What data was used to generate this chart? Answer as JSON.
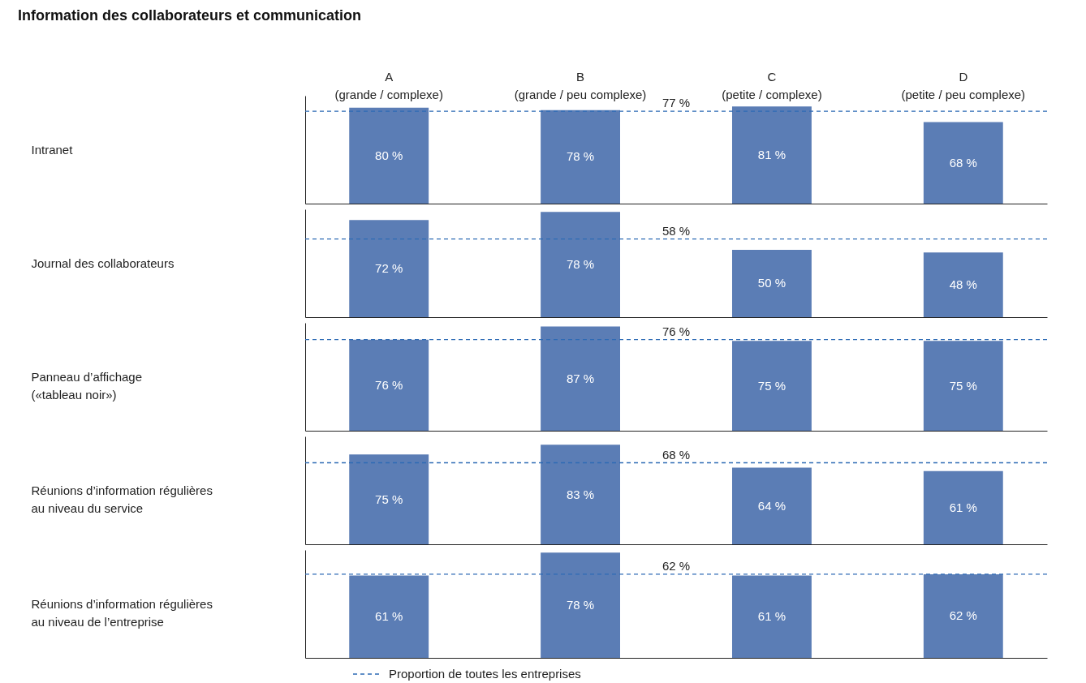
{
  "chart_data": [
    {
      "type": "bar",
      "title": "Information des collaborateurs et communication",
      "ylabel": "Intranet",
      "categories": [
        "A\n(grande / complexe)",
        "B\n(grande / peu complexe)",
        "C\n(petite / complexe)",
        "D\n(petite / peu complexe)"
      ],
      "values": [
        80,
        78,
        81,
        68
      ],
      "value_labels": [
        "80 %",
        "78 %",
        "81 %",
        "68 %"
      ],
      "color": "#5b7db5",
      "ref_lines": [
        {
          "axis": "y",
          "value": 77,
          "label": "77 %",
          "color": "#2e6bb5",
          "line_style": "dashed"
        }
      ],
      "tick_labels": "x",
      "grid": false,
      "legend": false
    },
    {
      "type": "bar",
      "ylabel": "Journal des collaborateurs",
      "categories": [
        null,
        null,
        null,
        null
      ],
      "values": [
        72,
        78,
        50,
        48
      ],
      "value_labels": [
        "72 %",
        "78 %",
        "50 %",
        "48 %"
      ],
      "color": "#5b7db5",
      "ref_lines": [
        {
          "axis": "y",
          "value": 58,
          "label": "58 %",
          "color": "#2e6bb5",
          "line_style": "dashed"
        }
      ],
      "tick_labels": false,
      "grid": false,
      "legend": false
    },
    {
      "type": "bar",
      "ylabel": "Panneau d’affichage\n(«tableau noir»)",
      "categories": [
        null,
        null,
        null,
        null
      ],
      "values": [
        76,
        87,
        75,
        75
      ],
      "value_labels": [
        "76 %",
        "87 %",
        "75 %",
        "75 %"
      ],
      "color": "#5b7db5",
      "ref_lines": [
        {
          "axis": "y",
          "value": 76,
          "label": "76 %",
          "color": "#2e6bb5",
          "line_style": "dashed"
        }
      ],
      "tick_labels": false,
      "grid": false,
      "legend": false
    },
    {
      "type": "bar",
      "ylabel": "Réunions d’information régulières\nau niveau du service",
      "categories": [
        null,
        null,
        null,
        null
      ],
      "values": [
        75,
        83,
        64,
        61
      ],
      "value_labels": [
        "75 %",
        "83 %",
        "64 %",
        "61 %"
      ],
      "color": "#5b7db5",
      "ref_lines": [
        {
          "axis": "y",
          "value": 68,
          "label": "68 %",
          "color": "#2e6bb5",
          "line_style": "dashed"
        }
      ],
      "tick_labels": false,
      "grid": false,
      "legend": false
    },
    {
      "type": "bar",
      "ylabel": "Réunions d’information régulières\nau niveau de l’entreprise",
      "categories": [
        null,
        null,
        null,
        null
      ],
      "values": [
        61,
        78,
        61,
        62
      ],
      "value_labels": [
        "61 %",
        "78 %",
        "61 %",
        "62 %"
      ],
      "color": "#5b7db5",
      "ref_lines": [
        {
          "axis": "y",
          "value": 62,
          "label": "62 %",
          "color": "#2e6bb5",
          "line_style": "dashed"
        }
      ],
      "tick_labels": false,
      "grid": false,
      "legend": false,
      "annotations": [
        "Proportion de toutes les entreprises"
      ]
    }
  ]
}
